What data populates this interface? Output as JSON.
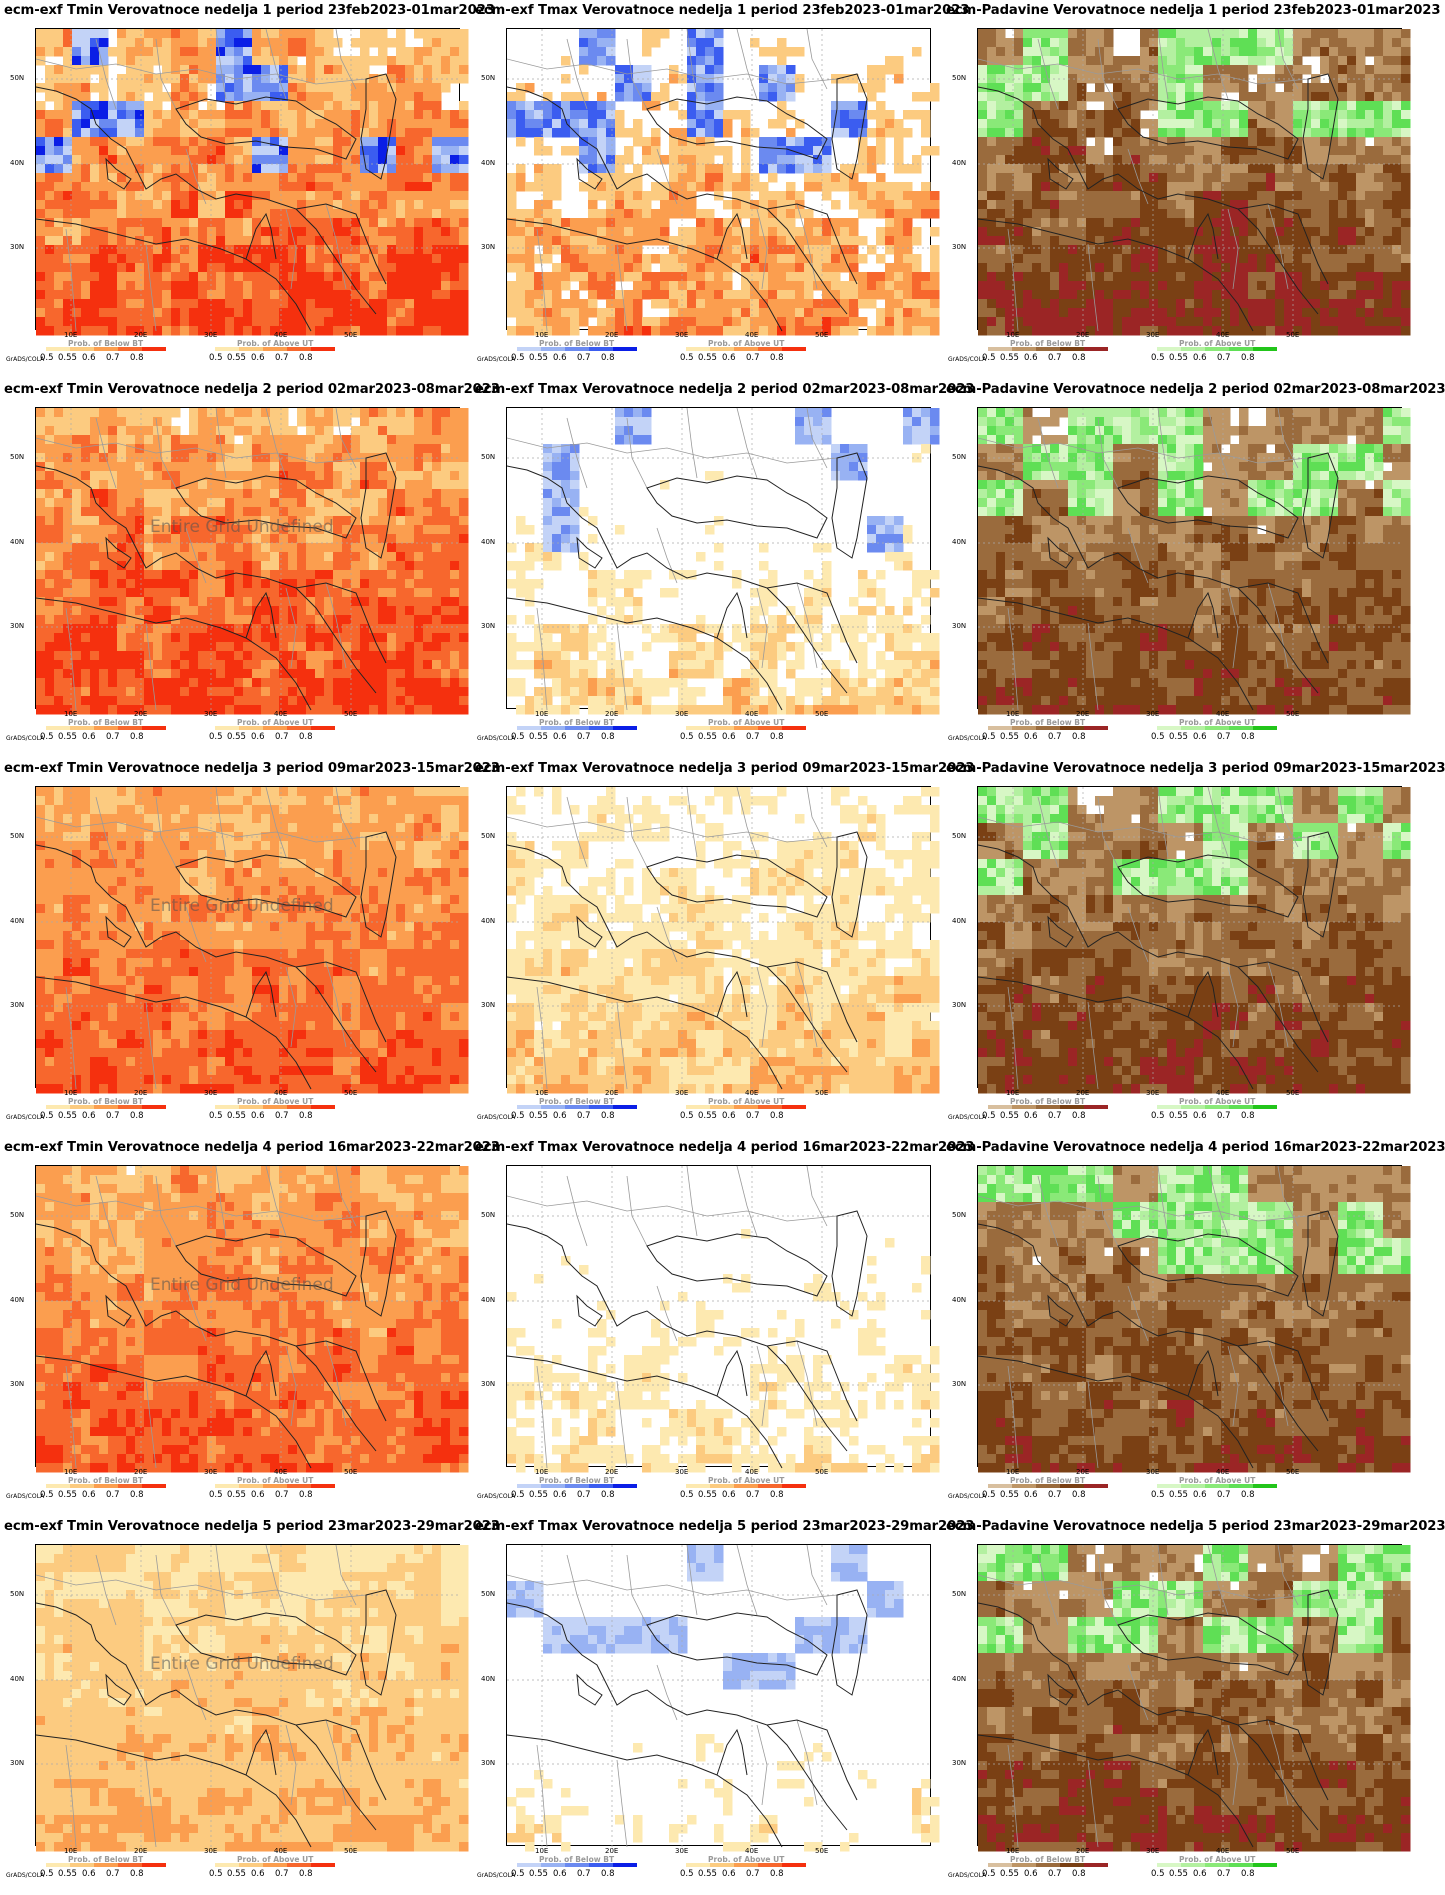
{
  "model": "ecm-exf",
  "grads_label": "GrADS/COLA",
  "overlay_text": "Entire Grid Undefined",
  "lat_labels": [
    "50N",
    "40N",
    "30N"
  ],
  "lon_labels": [
    "10E",
    "20E",
    "30E",
    "40E",
    "50E"
  ],
  "legend": {
    "below_title": "Prob. of Below BT",
    "above_title": "Prob. of Above UT",
    "ticks_left": [
      "0.5",
      "0.55",
      "0.6",
      "0.7",
      "0.8"
    ],
    "ticks_right": [
      "0.5",
      "0.55",
      "0.6",
      "0.7",
      "0.8"
    ]
  },
  "colors": {
    "warm": [
      "#fde9b0",
      "#fccb80",
      "#fb9e4f",
      "#f7672d",
      "#f5300e"
    ],
    "cold": [
      "#c3d3f7",
      "#98b2f3",
      "#6b8af0",
      "#3b5df0",
      "#0a1ee6"
    ],
    "dry": [
      "#d8bf9e",
      "#bd9566",
      "#9a6b3d",
      "#7a4014",
      "#9b2525"
    ],
    "wet": [
      "#d7f7c5",
      "#b3f0a0",
      "#8ae978",
      "#5fdf55",
      "#22c51a"
    ]
  },
  "panels": [
    {
      "title": "ecm-exf Tmin Verovatnoce nedelja 1 period 23feb2023-01mar2023",
      "variable": "Tmin",
      "week": 1,
      "intensity": 5,
      "cover": 0.78,
      "overlay": false,
      "cold": true
    },
    {
      "title": "ecm-exf Tmax Verovatnoce nedelja 1 period 23feb2023-01mar2023",
      "variable": "Tmax",
      "week": 1,
      "intensity": 4,
      "cover": 0.45,
      "overlay": false,
      "cold": true
    },
    {
      "title": "ecm-Padavine Verovatnoce nedelja 1 period 23feb2023-01mar2023",
      "variable": "Padavine",
      "week": 1,
      "intensity": 5,
      "cover": 0.75,
      "overlay": false,
      "cold": false
    },
    {
      "title": "ecm-exf Tmin Verovatnoce nedelja 2 period 02mar2023-08mar2023",
      "variable": "Tmin",
      "week": 2,
      "intensity": 5,
      "cover": 0.88,
      "overlay": true,
      "cold": false
    },
    {
      "title": "ecm-exf Tmax Verovatnoce nedelja 2 period 02mar2023-08mar2023",
      "variable": "Tmax",
      "week": 2,
      "intensity": 3,
      "cover": 0.3,
      "overlay": false,
      "cold": true
    },
    {
      "title": "ecm-Padavine Verovatnoce nedelja 2 period 02mar2023-08mar2023",
      "variable": "Padavine",
      "week": 2,
      "intensity": 4,
      "cover": 0.78,
      "overlay": false,
      "cold": false
    },
    {
      "title": "ecm-exf Tmin Verovatnoce nedelja 3 period 09mar2023-15mar2023",
      "variable": "Tmin",
      "week": 3,
      "intensity": 4,
      "cover": 0.95,
      "overlay": true,
      "cold": false
    },
    {
      "title": "ecm-exf Tmax Verovatnoce nedelja 3 period 09mar2023-15mar2023",
      "variable": "Tmax",
      "week": 3,
      "intensity": 3,
      "cover": 0.55,
      "overlay": false,
      "cold": false
    },
    {
      "title": "ecm-Padavine Verovatnoce nedelja 3 period 09mar2023-15mar2023",
      "variable": "Padavine",
      "week": 3,
      "intensity": 4,
      "cover": 0.8,
      "overlay": false,
      "cold": false
    },
    {
      "title": "ecm-exf Tmin Verovatnoce nedelja 4 period 16mar2023-22mar2023",
      "variable": "Tmin",
      "week": 4,
      "intensity": 4,
      "cover": 0.96,
      "overlay": true,
      "cold": false
    },
    {
      "title": "ecm-exf Tmax Verovatnoce nedelja 4 period 16mar2023-22mar2023",
      "variable": "Tmax",
      "week": 4,
      "intensity": 2,
      "cover": 0.25,
      "overlay": false,
      "cold": false
    },
    {
      "title": "ecm-Padavine Verovatnoce nedelja 4 period 16mar2023-22mar2023",
      "variable": "Padavine",
      "week": 4,
      "intensity": 4,
      "cover": 0.8,
      "overlay": false,
      "cold": false
    },
    {
      "title": "ecm-exf Tmin Verovatnoce nedelja 5 period 23mar2023-29mar2023",
      "variable": "Tmin",
      "week": 5,
      "intensity": 3,
      "cover": 0.98,
      "overlay": true,
      "cold": false
    },
    {
      "title": "ecm-exf Tmax Verovatnoce nedelja 5 period 23mar2023-29mar2023",
      "variable": "Tmax",
      "week": 5,
      "intensity": 2,
      "cover": 0.08,
      "overlay": false,
      "cold": true
    },
    {
      "title": "ecm-Padavine Verovatnoce nedelja 5 period 23mar2023-29mar2023",
      "variable": "Padavine",
      "week": 5,
      "intensity": 4,
      "cover": 0.78,
      "overlay": false,
      "cold": false
    }
  ]
}
